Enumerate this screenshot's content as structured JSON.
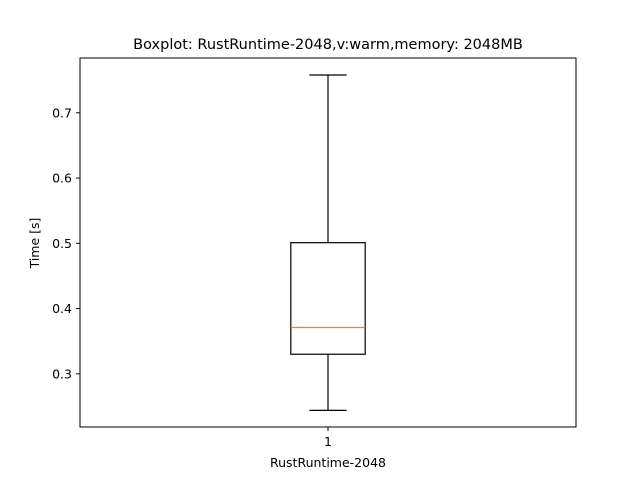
{
  "chart_data": {
    "type": "box",
    "title": "Boxplot: RustRuntime-2048,v:warm,memory: 2048MB",
    "xlabel": "RustRuntime-2048",
    "ylabel": "Time [s]",
    "categories": [
      "1"
    ],
    "ylim": [
      0.2185,
      0.784
    ],
    "yticks": [
      0.3,
      0.4,
      0.5,
      0.6,
      0.7
    ],
    "ytick_labels": [
      "0.3",
      "0.4",
      "0.5",
      "0.6",
      "0.7"
    ],
    "grid": false,
    "boxes": [
      {
        "label": "1",
        "whisker_low": 0.244,
        "q1": 0.33,
        "median": 0.371,
        "q3": 0.501,
        "whisker_high": 0.758
      }
    ],
    "colors": {
      "box": "#000000",
      "median": "#ff7f0e",
      "axes": "#000000"
    }
  }
}
